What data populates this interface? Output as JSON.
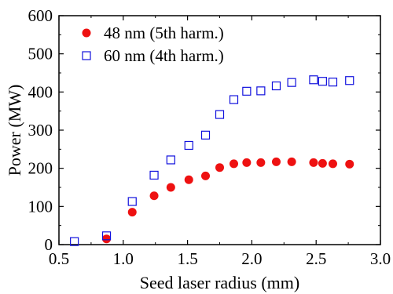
{
  "chart_data": {
    "type": "scatter",
    "xlabel": "Seed laser radius (mm)",
    "ylabel": "Power (MW)",
    "xlim": [
      0.5,
      3.0
    ],
    "ylim": [
      0,
      600
    ],
    "xticks": [
      0.5,
      1.0,
      1.5,
      2.0,
      2.5,
      3.0
    ],
    "xtick_labels": [
      "0.5",
      "1.0",
      "1.5",
      "2.0",
      "2.5",
      "3.0"
    ],
    "yticks": [
      0,
      100,
      200,
      300,
      400,
      500,
      600
    ],
    "ytick_labels": [
      "0",
      "100",
      "200",
      "300",
      "400",
      "500",
      "600"
    ],
    "grid": false,
    "legend_position": "top-left",
    "series": [
      {
        "name": "48 nm (5th harm.)",
        "marker": "filled-circle",
        "color": "#ee1111",
        "x": [
          0.87,
          1.07,
          1.24,
          1.37,
          1.51,
          1.64,
          1.75,
          1.86,
          1.96,
          2.07,
          2.19,
          2.31,
          2.48,
          2.55,
          2.63,
          2.76
        ],
        "y": [
          15,
          85,
          128,
          150,
          170,
          180,
          202,
          212,
          215,
          215,
          217,
          217,
          215,
          213,
          212,
          211
        ]
      },
      {
        "name": "60 nm (4th harm.)",
        "marker": "open-square",
        "color": "#1111dd",
        "x": [
          0.62,
          0.87,
          1.07,
          1.24,
          1.37,
          1.51,
          1.64,
          1.75,
          1.86,
          1.96,
          2.07,
          2.19,
          2.31,
          2.48,
          2.55,
          2.63,
          2.76
        ],
        "y": [
          8,
          23,
          113,
          182,
          222,
          260,
          287,
          341,
          380,
          402,
          403,
          416,
          425,
          432,
          428,
          426,
          430
        ]
      }
    ]
  }
}
